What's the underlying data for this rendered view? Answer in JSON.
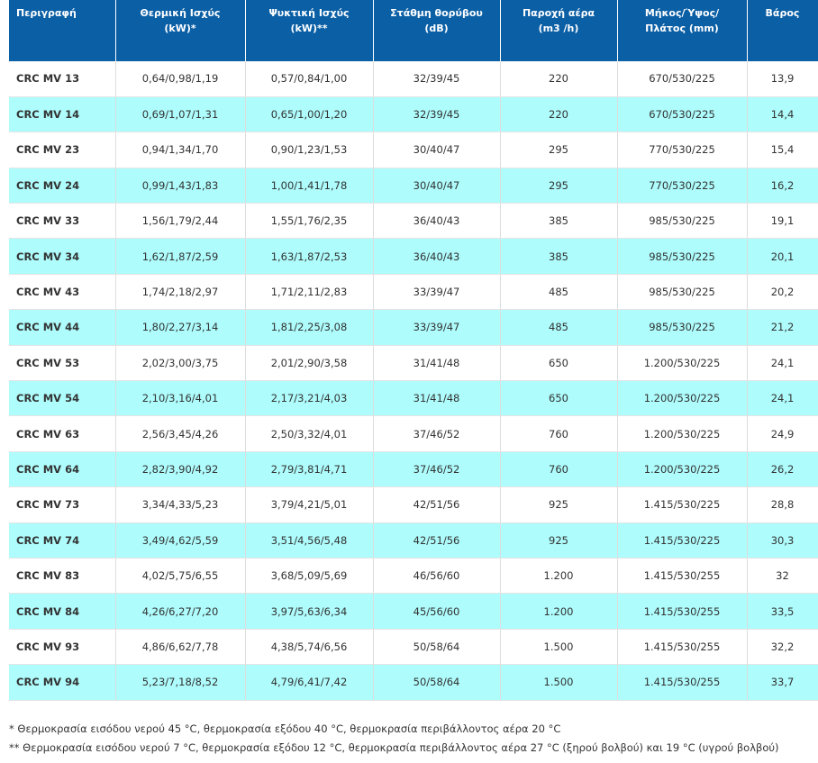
{
  "table": {
    "header": [
      "Περιγραφή",
      "Θερμική Ισχύς (kW)*",
      "Ψυκτική Ισχύς (kW)**",
      "Στάθμη θορύβου (dB)",
      "Παροχή αέρα (m3 /h)",
      "Μήκος/Ύψος/ Πλάτος (mm)",
      "Βάρος"
    ],
    "rows": [
      [
        "CRC MV 13",
        "0,64/0,98/1,19",
        "0,57/0,84/1,00",
        "32/39/45",
        "220",
        "670/530/225",
        "13,9"
      ],
      [
        "CRC MV 14",
        "0,69/1,07/1,31",
        "0,65/1,00/1,20",
        "32/39/45",
        "220",
        "670/530/225",
        "14,4"
      ],
      [
        "CRC MV 23",
        "0,94/1,34/1,70",
        "0,90/1,23/1,53",
        "30/40/47",
        "295",
        "770/530/225",
        "15,4"
      ],
      [
        "CRC MV 24",
        "0,99/1,43/1,83",
        "1,00/1,41/1,78",
        "30/40/47",
        "295",
        "770/530/225",
        "16,2"
      ],
      [
        "CRC MV 33",
        "1,56/1,79/2,44",
        "1,55/1,76/2,35",
        "36/40/43",
        "385",
        "985/530/225",
        "19,1"
      ],
      [
        "CRC MV 34",
        "1,62/1,87/2,59",
        "1,63/1,87/2,53",
        "36/40/43",
        "385",
        "985/530/225",
        "20,1"
      ],
      [
        "CRC MV 43",
        "1,74/2,18/2,97",
        "1,71/2,11/2,83",
        "33/39/47",
        "485",
        "985/530/225",
        "20,2"
      ],
      [
        "CRC MV 44",
        "1,80/2,27/3,14",
        "1,81/2,25/3,08",
        "33/39/47",
        "485",
        "985/530/225",
        "21,2"
      ],
      [
        "CRC MV 53",
        "2,02/3,00/3,75",
        "2,01/2,90/3,58",
        "31/41/48",
        "650",
        "1.200/530/225",
        "24,1"
      ],
      [
        "CRC MV 54",
        "2,10/3,16/4,01",
        "2,17/3,21/4,03",
        "31/41/48",
        "650",
        "1.200/530/225",
        "24,1"
      ],
      [
        "CRC MV 63",
        "2,56/3,45/4,26",
        "2,50/3,32/4,01",
        "37/46/52",
        "760",
        "1.200/530/225",
        "24,9"
      ],
      [
        "CRC MV 64",
        "2,82/3,90/4,92",
        "2,79/3,81/4,71",
        "37/46/52",
        "760",
        "1.200/530/225",
        "26,2"
      ],
      [
        "CRC MV 73",
        "3,34/4,33/5,23",
        "3,79/4,21/5,01",
        "42/51/56",
        "925",
        "1.415/530/225",
        "28,8"
      ],
      [
        "CRC MV 74",
        "3,49/4,62/5,59",
        "3,51/4,56/5,48",
        "42/51/56",
        "925",
        "1.415/530/225",
        "30,3"
      ],
      [
        "CRC MV 83",
        "4,02/5,75/6,55",
        "3,68/5,09/5,69",
        "46/56/60",
        "1.200",
        "1.415/530/255",
        "32"
      ],
      [
        "CRC MV 84",
        "4,26/6,27/7,20",
        "3,97/5,63/6,34",
        "45/56/60",
        "1.200",
        "1.415/530/255",
        "33,5"
      ],
      [
        "CRC MV 93",
        "4,86/6,62/7,78",
        "4,38/5,74/6,56",
        "50/58/64",
        "1.500",
        "1.415/530/255",
        "32,2"
      ],
      [
        "CRC MV 94",
        "5,23/7,18/8,52",
        "4,79/6,41/7,42",
        "50/58/64",
        "1.500",
        "1.415/530/255",
        "33,7"
      ]
    ]
  },
  "footnotes": [
    "* Θερμοκρασία εισόδου νερού 45 °C, θερμοκρασία εξόδου 40 °C, θερμοκρασία περιβάλλοντος αέρα 20 °C",
    "** Θερμοκρασία εισόδου νερού 7 °C, θερμοκρασία εξόδου 12 °C, θερμοκρασία περιβάλλοντος αέρα 27 °C (ξηρού βολβού) και 19 °C (υγρού βολβού)"
  ]
}
